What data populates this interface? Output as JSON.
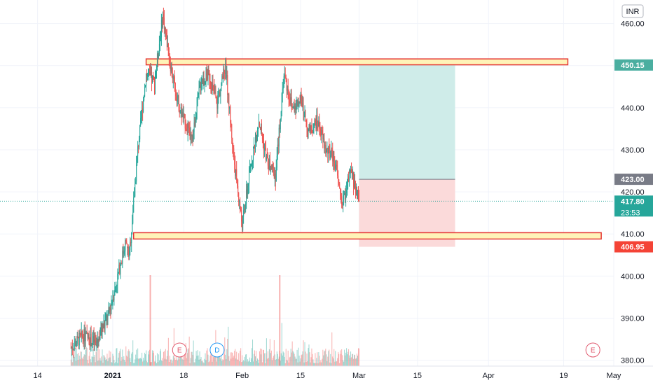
{
  "currency_label": "INR",
  "colors": {
    "up": "#26a69a",
    "down": "#ef5350",
    "current_price": "#26a69a",
    "target": "#4aaea0",
    "stop": "#f44336",
    "entry": "#787b86",
    "zone_border": "#e53935",
    "zone_fill": "#fff3b8",
    "profit_fill": "#cfece9",
    "loss_fill": "#fbdada",
    "earnings": "#e0566b",
    "dividend": "#2196f3"
  },
  "price_labels": {
    "target": "450.15",
    "entry": "423.00",
    "current": "417.80",
    "countdown": "23:53",
    "stop": "406.95"
  },
  "events": {
    "earnings": "E",
    "dividend": "D"
  },
  "chart_data": {
    "type": "candlestick",
    "title": "",
    "x_ticks": [
      {
        "label": "14",
        "date": "2020-12-14",
        "bold": false
      },
      {
        "label": "2021",
        "date": "2021-01-01",
        "bold": true
      },
      {
        "label": "18",
        "date": "2021-01-18",
        "bold": false
      },
      {
        "label": "Feb",
        "date": "2021-02-01",
        "bold": false
      },
      {
        "label": "15",
        "date": "2021-02-15",
        "bold": false
      },
      {
        "label": "Mar",
        "date": "2021-03-01",
        "bold": false
      },
      {
        "label": "15",
        "date": "2021-03-15",
        "bold": false
      },
      {
        "label": "Apr",
        "date": "2021-04-01",
        "bold": false
      },
      {
        "label": "19",
        "date": "2021-04-19",
        "bold": false
      },
      {
        "label": "May",
        "date": "2021-05-01",
        "bold": false
      }
    ],
    "y_ticks": [
      380,
      390,
      400,
      410,
      420,
      430,
      440,
      450,
      460
    ],
    "ylim": [
      378.6,
      465.6
    ],
    "xlim": [
      "2020-12-05",
      "2021-05-01"
    ],
    "price_path": [
      [
        "2020-12-22",
        383
      ],
      [
        "2020-12-25",
        386
      ],
      [
        "2020-12-28",
        384
      ],
      [
        "2020-12-31",
        391
      ],
      [
        "2021-01-02",
        399
      ],
      [
        "2021-01-04",
        408
      ],
      [
        "2021-01-05",
        405
      ],
      [
        "2021-01-07",
        430
      ],
      [
        "2021-01-09",
        448
      ],
      [
        "2021-01-11",
        446
      ],
      [
        "2021-01-13",
        462
      ],
      [
        "2021-01-15",
        449
      ],
      [
        "2021-01-17",
        440
      ],
      [
        "2021-01-20",
        432
      ],
      [
        "2021-01-22",
        446
      ],
      [
        "2021-01-24",
        448
      ],
      [
        "2021-01-26",
        441
      ],
      [
        "2021-01-28",
        450
      ],
      [
        "2021-01-30",
        428
      ],
      [
        "2021-02-01",
        412
      ],
      [
        "2021-02-03",
        426
      ],
      [
        "2021-02-05",
        437
      ],
      [
        "2021-02-07",
        427
      ],
      [
        "2021-02-09",
        424
      ],
      [
        "2021-02-11",
        448
      ],
      [
        "2021-02-13",
        440
      ],
      [
        "2021-02-15",
        442
      ],
      [
        "2021-02-17",
        434
      ],
      [
        "2021-02-19",
        437
      ],
      [
        "2021-02-21",
        430
      ],
      [
        "2021-02-23",
        428
      ],
      [
        "2021-02-25",
        417
      ],
      [
        "2021-02-27",
        425
      ],
      [
        "2021-03-01",
        418
      ]
    ],
    "volume_spikes": [
      {
        "date": "2021-01-10",
        "value": "high"
      },
      {
        "date": "2021-02-10",
        "value": "high"
      }
    ],
    "horizontal_zones": [
      {
        "name": "resistance",
        "from": 450.2,
        "to": 451.6,
        "start": "2021-01-09",
        "end": "2021-04-20"
      },
      {
        "name": "support",
        "from": 408.8,
        "to": 410.3,
        "start": "2021-01-06",
        "end": "2021-04-28"
      }
    ],
    "position": {
      "start": "2021-03-01",
      "end": "2021-03-24",
      "target": 450.15,
      "entry": 423.0,
      "stop": 406.95
    },
    "current_price": 417.8,
    "event_markers": [
      {
        "type": "earnings",
        "date": "2021-01-17"
      },
      {
        "type": "dividend",
        "date": "2021-01-26"
      },
      {
        "type": "earnings",
        "date": "2021-04-26"
      }
    ]
  }
}
